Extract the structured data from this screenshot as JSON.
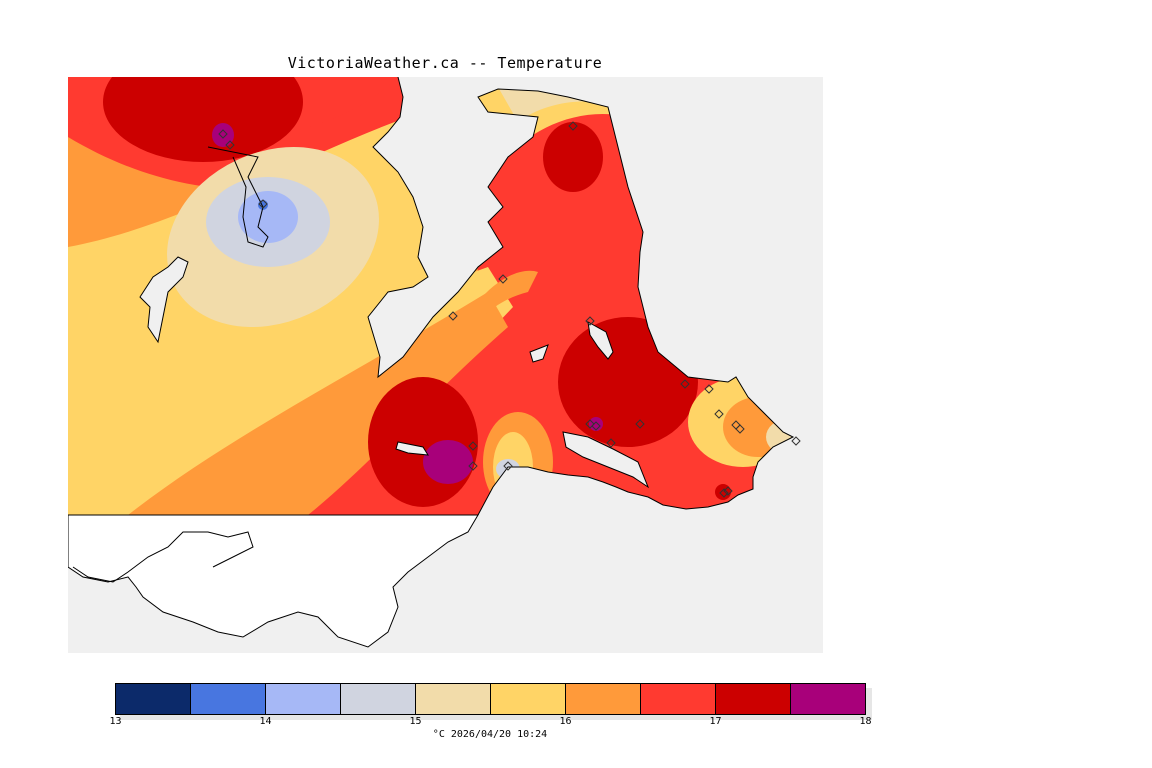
{
  "title": "VictoriaWeather.ca -- Temperature",
  "colors": {
    "water": "#f0f0f0",
    "land_outline": "#000000",
    "bands": [
      "#0c2a6a",
      "#4876e0",
      "#a6b8f6",
      "#d0d4e0",
      "#f2dcaa",
      "#ffd466",
      "#ff9a3a",
      "#ff3a30",
      "#cc0000",
      "#a8007a"
    ]
  },
  "legend": {
    "ticks": [
      "13",
      "14",
      "15",
      "16",
      "17",
      "18"
    ],
    "units": "°C",
    "timestamp": "2026/04/20 10:24"
  },
  "stations_count": 22
}
